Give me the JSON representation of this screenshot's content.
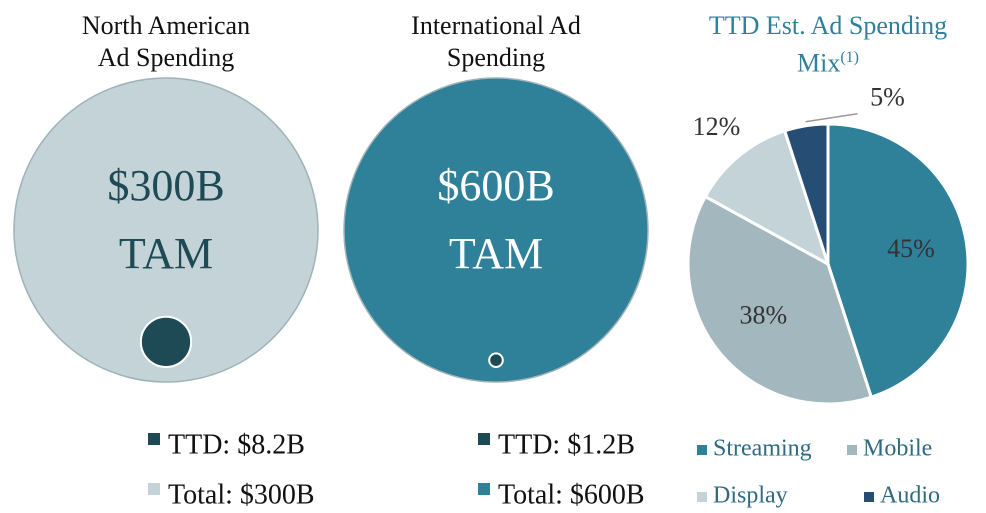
{
  "chart_data": [
    {
      "type": "nested_circle",
      "title": "North American Ad Spending",
      "annotations": [
        "$300B",
        "TAM"
      ],
      "series": [
        {
          "name": "TTD: $8.2B",
          "color": "#1e4a55",
          "values": [
            8.2
          ]
        },
        {
          "name": "Total: $300B",
          "color": "#c3d3d8",
          "values": [
            300
          ]
        }
      ]
    },
    {
      "type": "nested_circle",
      "title": "International Ad Spending",
      "annotations": [
        "$600B",
        "TAM"
      ],
      "series": [
        {
          "name": "TTD: $1.2B",
          "color": "#1e4a55",
          "values": [
            1.2
          ]
        },
        {
          "name": "Total: $600B",
          "color": "#2f8099",
          "values": [
            600
          ]
        }
      ]
    },
    {
      "type": "pie",
      "title": "TTD Est. Ad Spending Mix",
      "title_note": "(1)",
      "categories": [
        "Streaming",
        "Mobile",
        "Display",
        "Audio"
      ],
      "values": [
        45,
        38,
        12,
        5
      ],
      "value_labels": [
        "45%",
        "38%",
        "12%",
        "5%"
      ],
      "colors": [
        "#2f8099",
        "#a3b8be",
        "#c3d3d8",
        "#264d73"
      ]
    }
  ]
}
